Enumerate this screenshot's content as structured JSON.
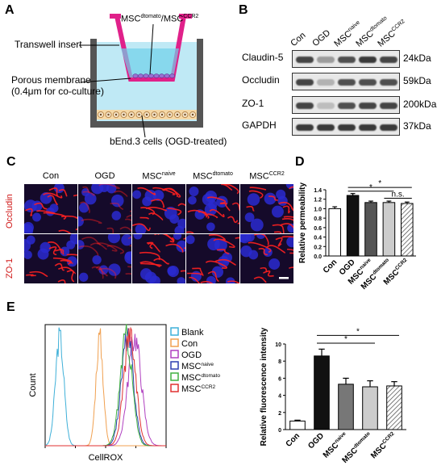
{
  "panels": {
    "A": "A",
    "B": "B",
    "C": "C",
    "D": "D",
    "E": "E"
  },
  "panel_a": {
    "msc_label_base1": "MSC",
    "msc_label_sup1": "dtomato",
    "msc_label_sep": "/",
    "msc_label_base2": "MSC",
    "msc_label_sup2": "CCR2",
    "transwell_insert": "Transwell insert",
    "porous_membrane": "Porous membrane",
    "pore_note": "(0.4μm for co-culture)",
    "bend_cells": "bEnd.3 cells (OGD-treated)"
  },
  "panel_b": {
    "lanes": [
      {
        "base": "Con",
        "sup": ""
      },
      {
        "base": "OGD",
        "sup": ""
      },
      {
        "base": "MSC",
        "sup": "naive"
      },
      {
        "base": "MSC",
        "sup": "dtomato"
      },
      {
        "base": "MSC",
        "sup": "CCR2"
      }
    ],
    "rows": [
      {
        "protein": "Claudin-5",
        "size": "24kDa",
        "intensity": [
          0.85,
          0.45,
          0.8,
          0.9,
          0.85
        ]
      },
      {
        "protein": "Occludin",
        "size": "59kDa",
        "intensity": [
          0.85,
          0.35,
          0.8,
          0.8,
          0.8
        ]
      },
      {
        "protein": "ZO-1",
        "size": "200kDa",
        "intensity": [
          0.85,
          0.3,
          0.8,
          0.85,
          0.85
        ]
      },
      {
        "protein": "GAPDH",
        "size": "37kDa",
        "intensity": [
          0.9,
          0.9,
          0.9,
          0.9,
          0.9
        ]
      }
    ]
  },
  "panel_c": {
    "columns": [
      {
        "base": "Con",
        "sup": ""
      },
      {
        "base": "OGD",
        "sup": ""
      },
      {
        "base": "MSC",
        "sup": "naive"
      },
      {
        "base": "MSC",
        "sup": "dtomato"
      },
      {
        "base": "MSC",
        "sup": "CCR2"
      }
    ],
    "rows": [
      "Occludin",
      "ZO-1"
    ]
  },
  "chart_data": [
    {
      "type": "bar",
      "panel": "D",
      "ylabel": "Relative permeability",
      "ylim": [
        0,
        1.4
      ],
      "yticks": [
        "0.0",
        "0.2",
        "0.4",
        "0.6",
        "0.8",
        "1.0",
        "1.2",
        "1.4"
      ],
      "categories": [
        {
          "base": "Con",
          "sup": ""
        },
        {
          "base": "OGD",
          "sup": ""
        },
        {
          "base": "MSC",
          "sup": "naive"
        },
        {
          "base": "MSC",
          "sup": "dtomato"
        },
        {
          "base": "MSC",
          "sup": "CCR2"
        }
      ],
      "values": [
        1.0,
        1.28,
        1.13,
        1.13,
        1.11
      ],
      "errors": [
        0.04,
        0.04,
        0.03,
        0.03,
        0.03
      ],
      "fills": [
        "#ffffff",
        "#111111",
        "#555555",
        "#cccccc",
        "hatch"
      ],
      "annotations": [
        "*",
        "*",
        "n.s."
      ]
    },
    {
      "type": "line",
      "panel": "E-histogram",
      "xlabel": "CellROX",
      "ylabel": "Count",
      "legend": [
        {
          "base": "Blank",
          "sup": "",
          "color": "#3fb0d8"
        },
        {
          "base": "Con",
          "sup": "",
          "color": "#f0a050"
        },
        {
          "base": "OGD",
          "sup": "",
          "color": "#b040c0"
        },
        {
          "base": "MSC",
          "sup": "naive",
          "color": "#2f3fb0"
        },
        {
          "base": "MSC",
          "sup": "dtomato",
          "color": "#40b040"
        },
        {
          "base": "MSC",
          "sup": "CCR2",
          "color": "#e03030"
        }
      ],
      "peaks": [
        0.12,
        0.45,
        0.74,
        0.68,
        0.67,
        0.7
      ],
      "widths": [
        0.035,
        0.03,
        0.055,
        0.05,
        0.05,
        0.05
      ]
    },
    {
      "type": "bar",
      "panel": "E-bar",
      "ylabel": "Relative fluorescence intensity",
      "ylim": [
        0,
        10
      ],
      "yticks": [
        "0",
        "2",
        "4",
        "6",
        "8",
        "10"
      ],
      "categories": [
        {
          "base": "Con",
          "sup": ""
        },
        {
          "base": "OGD",
          "sup": ""
        },
        {
          "base": "MSC",
          "sup": "naive"
        },
        {
          "base": "MSC",
          "sup": "dtomato"
        },
        {
          "base": "MSC",
          "sup": "CCR2"
        }
      ],
      "values": [
        1.0,
        8.6,
        5.3,
        5.0,
        5.1
      ],
      "errors": [
        0.1,
        0.8,
        0.7,
        0.7,
        0.5
      ],
      "fills": [
        "#ffffff",
        "#111111",
        "#777777",
        "#cccccc",
        "hatch"
      ],
      "annotations": [
        "*",
        "*"
      ]
    }
  ]
}
